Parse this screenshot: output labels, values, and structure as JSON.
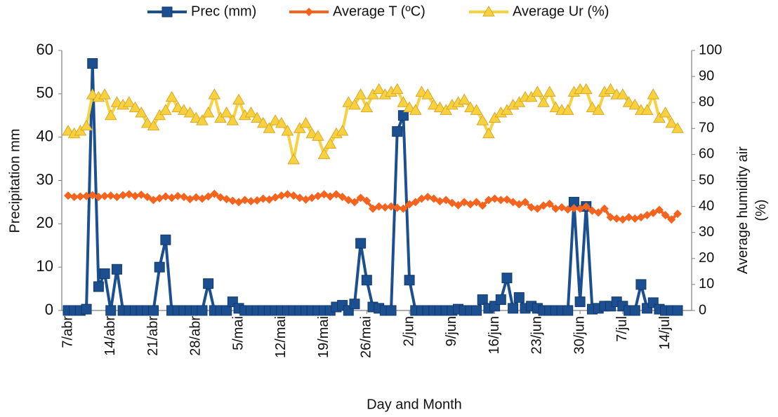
{
  "chart_data": {
    "type": "line",
    "x_label": "Day and Month",
    "y_label": "Precipitation mm",
    "y2_label": "Average humidity air (%)",
    "categories": [
      "7/abr",
      null,
      null,
      null,
      null,
      null,
      null,
      "14/abr",
      null,
      null,
      null,
      null,
      null,
      null,
      "21/abr",
      null,
      null,
      null,
      null,
      null,
      null,
      "28/abr",
      null,
      null,
      null,
      null,
      null,
      null,
      "5/mai",
      null,
      null,
      null,
      null,
      null,
      null,
      "12/mai",
      null,
      null,
      null,
      null,
      null,
      null,
      "19/mai",
      null,
      null,
      null,
      null,
      null,
      null,
      "26/mai",
      null,
      null,
      null,
      null,
      null,
      null,
      "2/jun",
      null,
      null,
      null,
      null,
      null,
      null,
      "9/jun",
      null,
      null,
      null,
      null,
      null,
      null,
      "16/jun",
      null,
      null,
      null,
      null,
      null,
      null,
      "23/jun",
      null,
      null,
      null,
      null,
      null,
      null,
      "30/jun",
      null,
      null,
      null,
      null,
      null,
      null,
      "7/jul",
      null,
      null,
      null,
      null,
      null,
      null,
      "14/jul",
      null,
      null
    ],
    "ylim": [
      0,
      60
    ],
    "yticks": [
      0,
      10,
      20,
      30,
      40,
      50,
      60
    ],
    "y2lim": [
      0,
      100
    ],
    "y2ticks": [
      0,
      10,
      20,
      30,
      40,
      50,
      60,
      70,
      80,
      90,
      100
    ],
    "grid": false,
    "legend": "top",
    "series": [
      {
        "name": "Prec (mm)",
        "color": "#1c4f8f",
        "marker": "square",
        "values": [
          0,
          0,
          0,
          0.3,
          57,
          5.5,
          8.5,
          0,
          9.5,
          0,
          0,
          0,
          0,
          0,
          0,
          10,
          16.3,
          0,
          0,
          0,
          0,
          0,
          0,
          6.2,
          0,
          0,
          0,
          2,
          0.5,
          0,
          0,
          0,
          0,
          0,
          0,
          0,
          0,
          0,
          0,
          0,
          0,
          0,
          0,
          0,
          0.8,
          1.2,
          0,
          1.5,
          15.5,
          7,
          0.8,
          0.5,
          0,
          0,
          41.3,
          45,
          7,
          0,
          0,
          0,
          0,
          0,
          0,
          0,
          0.3,
          0,
          0,
          0,
          2.5,
          0.5,
          1,
          2.5,
          7.5,
          0.5,
          3,
          0.5,
          1,
          0.5,
          0,
          0,
          0,
          0,
          0,
          25,
          2,
          24,
          0.3,
          0.5,
          1,
          1,
          2,
          1,
          0,
          0,
          6,
          0.5,
          1.8,
          0.3,
          0,
          0,
          0
        ]
      },
      {
        "name": "Average T  (ºC)",
        "color": "#f4641e",
        "marker": "diamond",
        "values": [
          26.5,
          26.2,
          26.3,
          26.4,
          26.6,
          26.2,
          26.4,
          26.5,
          26.2,
          26.6,
          26.8,
          26.4,
          26.7,
          26.2,
          25.5,
          25.9,
          26.3,
          26,
          26.4,
          26.2,
          25.7,
          26.1,
          25.8,
          26.3,
          26.9,
          26.1,
          25.7,
          25.3,
          25,
          25.5,
          25.2,
          25.4,
          25.8,
          25.6,
          26.1,
          26.5,
          26.8,
          26.5,
          26,
          25.6,
          26,
          26.4,
          26.8,
          26.3,
          26.8,
          26.2,
          25.5,
          25,
          26,
          25.3,
          23.5,
          24,
          23.8,
          24,
          23.7,
          23.5,
          24.5,
          25,
          25.8,
          26.2,
          25.8,
          25.2,
          25.5,
          24.8,
          24.3,
          25,
          24.5,
          25,
          24.2,
          25.5,
          25.8,
          25.5,
          25.6,
          25,
          24.5,
          25,
          23.8,
          23.5,
          24.2,
          24.6,
          23.5,
          23.8,
          23.3,
          23.6,
          23.5,
          24,
          23,
          22.6,
          23.5,
          21.5,
          21.2,
          21,
          21.5,
          21.2,
          21.5,
          22,
          22.5,
          23.2,
          22,
          21,
          22.3
        ]
      },
      {
        "name": "Average Ur  (%)",
        "color": "#f7d23e",
        "marker": "triangle",
        "axis": "y2",
        "values": [
          69,
          68,
          69,
          71,
          83,
          82,
          83,
          75,
          80,
          79,
          80,
          78,
          76,
          72,
          71,
          75,
          77,
          82,
          78,
          77,
          76,
          74,
          73,
          76,
          83,
          74,
          76,
          73,
          81,
          75,
          76,
          74,
          72,
          70,
          73,
          72,
          69,
          58,
          70,
          72,
          68,
          67,
          60,
          64,
          68,
          69,
          80,
          79,
          83,
          78,
          83,
          85,
          83,
          84,
          85,
          80,
          78,
          77,
          84,
          83,
          79,
          78,
          77,
          79,
          80,
          81,
          78,
          77,
          73,
          68,
          74,
          76,
          77,
          79,
          80,
          82,
          82,
          84,
          80,
          84,
          78,
          77,
          77,
          84,
          85,
          85,
          78,
          77,
          84,
          85,
          83,
          83,
          80,
          79,
          77,
          77,
          83,
          74,
          76,
          72,
          70
        ]
      }
    ]
  }
}
